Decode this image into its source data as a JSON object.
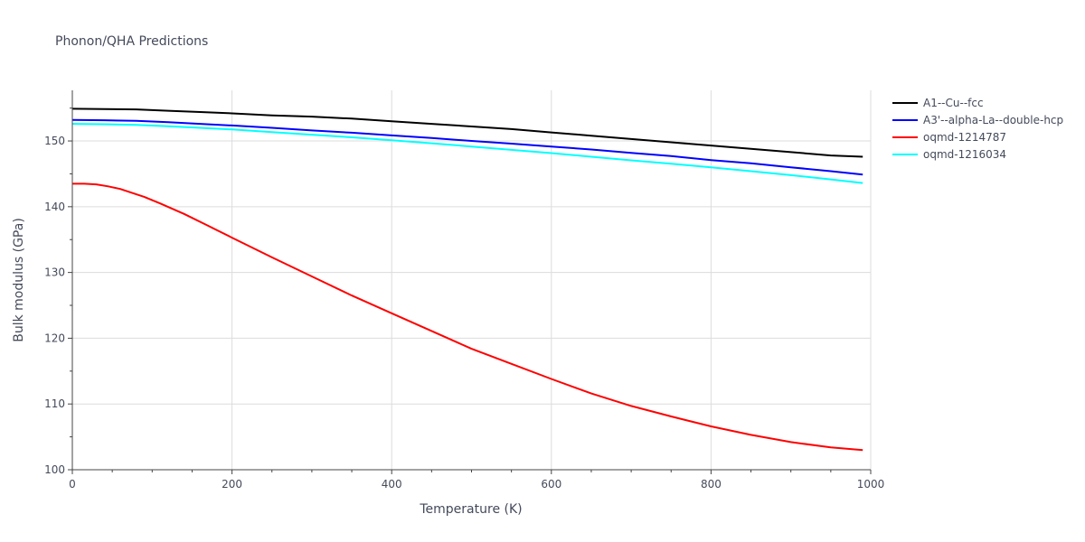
{
  "chart_data": {
    "type": "line",
    "title": "Phonon/QHA Predictions",
    "xlabel": "Temperature (K)",
    "ylabel": "Bulk modulus (GPa)",
    "xlim": [
      0,
      1000
    ],
    "ylim": [
      100,
      157.7
    ],
    "xticks": [
      0,
      200,
      400,
      600,
      800,
      1000
    ],
    "yticks": [
      100,
      110,
      120,
      130,
      140,
      150
    ],
    "grid": true,
    "legend_position": "top-right",
    "series": [
      {
        "name": "A1--Cu--fcc",
        "color": "#000000",
        "x": [
          0,
          40,
          80,
          120,
          160,
          200,
          250,
          300,
          350,
          400,
          450,
          500,
          550,
          600,
          650,
          700,
          750,
          800,
          850,
          900,
          950,
          990
        ],
        "y": [
          154.9,
          154.85,
          154.8,
          154.6,
          154.4,
          154.2,
          153.9,
          153.7,
          153.4,
          153.0,
          152.6,
          152.2,
          151.8,
          151.3,
          150.8,
          150.3,
          149.8,
          149.3,
          148.8,
          148.3,
          147.8,
          147.6
        ]
      },
      {
        "name": "A3'--alpha-La--double-hcp",
        "color": "#0000ff",
        "x": [
          0,
          40,
          80,
          120,
          160,
          200,
          250,
          300,
          350,
          400,
          450,
          500,
          550,
          600,
          650,
          700,
          750,
          800,
          850,
          900,
          950,
          990
        ],
        "y": [
          153.2,
          153.15,
          153.05,
          152.85,
          152.6,
          152.35,
          152.0,
          151.6,
          151.25,
          150.85,
          150.45,
          150.0,
          149.6,
          149.15,
          148.7,
          148.2,
          147.7,
          147.1,
          146.6,
          146.0,
          145.4,
          144.9
        ]
      },
      {
        "name": "oqmd-1214787",
        "color": "#ff0000",
        "x": [
          0,
          15,
          30,
          45,
          60,
          75,
          90,
          110,
          140,
          170,
          200,
          250,
          300,
          350,
          400,
          450,
          500,
          550,
          600,
          650,
          700,
          750,
          800,
          850,
          900,
          950,
          990
        ],
        "y": [
          143.5,
          143.5,
          143.4,
          143.1,
          142.7,
          142.1,
          141.5,
          140.5,
          138.9,
          137.1,
          135.3,
          132.3,
          129.4,
          126.5,
          123.8,
          121.1,
          118.4,
          116.1,
          113.8,
          111.6,
          109.7,
          108.1,
          106.6,
          105.3,
          104.2,
          103.4,
          103.0
        ]
      },
      {
        "name": "oqmd-1216034",
        "color": "#00ffff",
        "x": [
          0,
          40,
          80,
          120,
          160,
          200,
          250,
          300,
          350,
          400,
          450,
          500,
          550,
          600,
          650,
          700,
          750,
          800,
          850,
          900,
          950,
          990
        ],
        "y": [
          152.6,
          152.55,
          152.45,
          152.25,
          152.0,
          151.75,
          151.35,
          150.95,
          150.55,
          150.1,
          149.65,
          149.15,
          148.65,
          148.15,
          147.6,
          147.05,
          146.55,
          146.0,
          145.4,
          144.8,
          144.15,
          143.6
        ]
      }
    ]
  }
}
